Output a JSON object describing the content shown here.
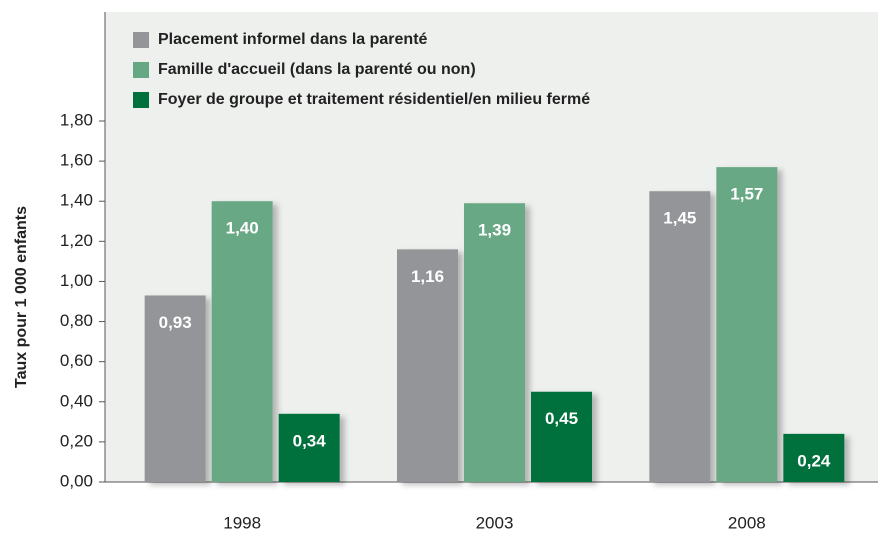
{
  "chart_data": {
    "type": "bar",
    "ylabel": "Taux pour 1 000 enfants",
    "categories": [
      "1998",
      "2003",
      "2008"
    ],
    "series": [
      {
        "name": "Placement informel dans la parenté",
        "color": "#939598",
        "values": [
          0.93,
          1.16,
          1.45
        ],
        "value_labels": [
          "0,93",
          "1,16",
          "1,45"
        ]
      },
      {
        "name": "Famille d'accueil (dans la parenté ou non)",
        "color": "#67a884",
        "values": [
          1.4,
          1.39,
          1.57
        ],
        "value_labels": [
          "1,40",
          "1,39",
          "1,57"
        ]
      },
      {
        "name": "Foyer de groupe et traitement résidentiel/en milieu fermé",
        "color": "#00703c",
        "values": [
          0.34,
          0.45,
          0.24
        ],
        "value_labels": [
          "0,34",
          "0,45",
          "0,24"
        ]
      }
    ],
    "ylim": [
      0,
      1.8
    ],
    "yticks": [
      {
        "value": 0,
        "label": "0,00"
      },
      {
        "value": 0.2,
        "label": "0,20"
      },
      {
        "value": 0.4,
        "label": "0,40"
      },
      {
        "value": 0.6,
        "label": "0,60"
      },
      {
        "value": 0.8,
        "label": "0,80"
      },
      {
        "value": 1.0,
        "label": "1,00"
      },
      {
        "value": 1.2,
        "label": "1,20"
      },
      {
        "value": 1.4,
        "label": "1,40"
      },
      {
        "value": 1.6,
        "label": "1,60"
      },
      {
        "value": 1.8,
        "label": "1,80"
      }
    ],
    "legend": "top-left",
    "grid": false
  }
}
